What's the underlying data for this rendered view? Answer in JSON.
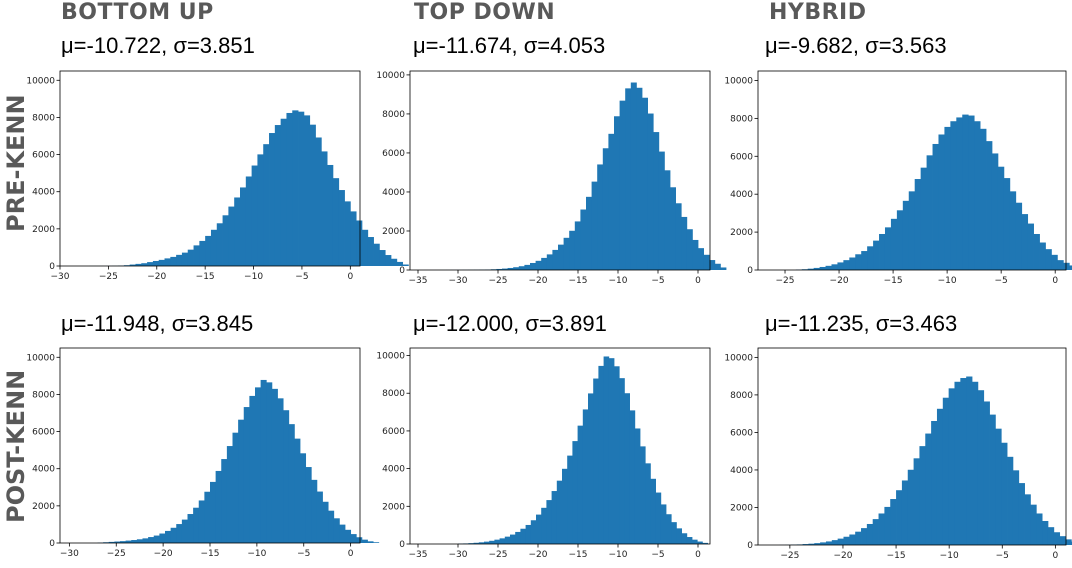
{
  "columns": [
    "BOTTOM UP",
    "TOP DOWN",
    "HYBRID"
  ],
  "rows": [
    "PRE-KENN",
    "POST-KENN"
  ],
  "colors": {
    "bar": "#1f77b4",
    "header": "#595959"
  },
  "chart_data": [
    {
      "type": "bar",
      "group": "BOTTOM UP",
      "phase": "PRE-KENN",
      "stats": "μ=-10.722, σ=3.851",
      "xlim": [
        -30,
        1
      ],
      "ylim": [
        0,
        10500
      ],
      "xticks": [
        -30,
        -25,
        -20,
        -15,
        -10,
        -5,
        0
      ],
      "yticks": [
        0,
        2000,
        4000,
        6000,
        8000,
        10000
      ],
      "bin_start": -27.0,
      "bin_width": 0.6,
      "values": [
        3,
        3,
        4,
        5,
        10,
        21,
        42,
        78,
        114,
        150,
        210,
        270,
        330,
        410,
        490,
        600,
        720,
        880,
        1110,
        1350,
        1620,
        1950,
        2300,
        2730,
        3200,
        3690,
        4230,
        4820,
        5410,
        6010,
        6560,
        7160,
        7590,
        7930,
        8240,
        8380,
        8310,
        8110,
        7610,
        6920,
        6170,
        5440,
        4730,
        4090,
        3480,
        2940,
        2450,
        1950,
        1560,
        1200,
        860,
        590,
        390,
        220,
        80
      ]
    },
    {
      "type": "bar",
      "group": "TOP DOWN",
      "phase": "PRE-KENN",
      "stats": "μ=-11.674, σ=4.053",
      "xlim": [
        -36,
        1.5
      ],
      "ylim": [
        0,
        10200
      ],
      "xticks": [
        -35,
        -30,
        -25,
        -20,
        -15,
        -10,
        -5,
        0
      ],
      "yticks": [
        0,
        2000,
        4000,
        6000,
        8000,
        10000
      ],
      "bin_start": -35.0,
      "bin_width": 0.7,
      "values": [
        0,
        1,
        1,
        2,
        3,
        4,
        5,
        6,
        8,
        10,
        13,
        18,
        25,
        37,
        53,
        73,
        104,
        143,
        194,
        262,
        360,
        470,
        620,
        800,
        1030,
        1300,
        1650,
        2010,
        2490,
        3100,
        3750,
        4530,
        5410,
        6240,
        6980,
        7880,
        8680,
        9310,
        9610,
        9340,
        8830,
        8020,
        7070,
        6070,
        5110,
        4240,
        3420,
        2720,
        2090,
        1540,
        1120,
        780,
        510,
        320,
        130
      ]
    },
    {
      "type": "bar",
      "group": "HYBRID",
      "phase": "PRE-KENN",
      "stats": "μ=-9.682, σ=3.563",
      "xlim": [
        -27.5,
        1
      ],
      "ylim": [
        0,
        10500
      ],
      "xticks": [
        -25,
        -20,
        -15,
        -10,
        -5,
        0
      ],
      "yticks": [
        0,
        2000,
        4000,
        6000,
        8000,
        10000
      ],
      "bin_start": -24.0,
      "bin_width": 0.55,
      "values": [
        20,
        40,
        70,
        110,
        160,
        220,
        300,
        400,
        520,
        660,
        830,
        1000,
        1250,
        1550,
        1900,
        2250,
        2700,
        3150,
        3650,
        4150,
        4800,
        5400,
        6050,
        6650,
        7150,
        7550,
        7850,
        8050,
        8200,
        8150,
        7850,
        7450,
        6800,
        6150,
        5450,
        4850,
        4150,
        3550,
        2950,
        2450,
        1900,
        1450,
        1100,
        800,
        520,
        380,
        240
      ]
    },
    {
      "type": "bar",
      "group": "BOTTOM UP",
      "phase": "POST-KENN",
      "stats": "μ=-11.948, σ=3.845",
      "xlim": [
        -31,
        1
      ],
      "ylim": [
        0,
        10500
      ],
      "xticks": [
        -30,
        -25,
        -20,
        -15,
        -10,
        -5,
        0
      ],
      "yticks": [
        0,
        2000,
        4000,
        6000,
        8000,
        10000
      ],
      "bin_start": -27.0,
      "bin_width": 0.6,
      "values": [
        20,
        40,
        60,
        80,
        100,
        130,
        160,
        200,
        250,
        320,
        400,
        510,
        650,
        820,
        1020,
        1260,
        1560,
        1900,
        2290,
        2760,
        3290,
        3880,
        4520,
        5220,
        5940,
        6640,
        7320,
        7920,
        8380,
        8780,
        8650,
        8300,
        7790,
        7150,
        6400,
        5620,
        4830,
        4090,
        3400,
        2770,
        2220,
        1740,
        1330,
        990,
        710,
        480,
        310,
        180,
        90,
        40
      ]
    },
    {
      "type": "bar",
      "group": "TOP DOWN",
      "phase": "POST-KENN",
      "stats": "μ=-12.000, σ=3.891",
      "xlim": [
        -36,
        1.5
      ],
      "ylim": [
        0,
        10400
      ],
      "xticks": [
        -35,
        -30,
        -25,
        -20,
        -15,
        -10,
        -5,
        0
      ],
      "yticks": [
        0,
        2000,
        4000,
        6000,
        8000,
        10000
      ],
      "bin_start": -30.0,
      "bin_width": 0.65,
      "values": [
        20,
        30,
        45,
        65,
        90,
        125,
        170,
        230,
        300,
        390,
        500,
        640,
        810,
        1010,
        1260,
        1560,
        1920,
        2330,
        2810,
        3360,
        3990,
        4690,
        5460,
        6280,
        7140,
        7990,
        8780,
        9450,
        9950,
        9860,
        9430,
        8800,
        8000,
        7090,
        6130,
        5180,
        4280,
        3460,
        2730,
        2100,
        1580,
        1160,
        830,
        570,
        370,
        230,
        130,
        60
      ]
    },
    {
      "type": "bar",
      "group": "HYBRID",
      "phase": "POST-KENN",
      "stats": "μ=-11.235, σ=3.463",
      "xlim": [
        -28,
        1
      ],
      "ylim": [
        0,
        10500
      ],
      "xticks": [
        -25,
        -20,
        -15,
        -10,
        -5,
        0
      ],
      "yticks": [
        0,
        2000,
        4000,
        6000,
        8000,
        10000
      ],
      "bin_start": -26.0,
      "bin_width": 0.55,
      "values": [
        5,
        10,
        20,
        30,
        50,
        70,
        100,
        140,
        190,
        260,
        340,
        440,
        560,
        710,
        900,
        1120,
        1380,
        1680,
        2030,
        2450,
        2920,
        3440,
        4010,
        4620,
        5270,
        5940,
        6610,
        7260,
        7850,
        8350,
        8700,
        8900,
        8980,
        8700,
        8250,
        7650,
        6950,
        6200,
        5450,
        4700,
        3980,
        3300,
        2700,
        2150,
        1680,
        1280,
        950,
        680,
        470,
        300,
        180,
        100,
        40
      ]
    }
  ]
}
